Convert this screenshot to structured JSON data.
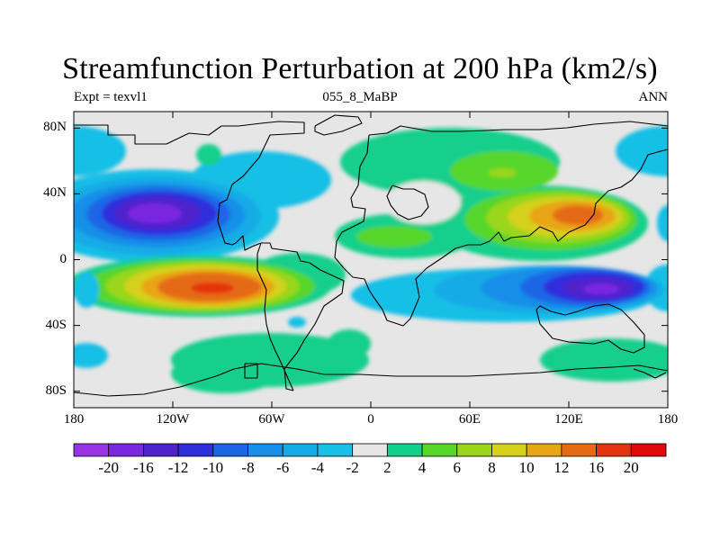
{
  "chart_data": {
    "type": "filled-contour-map",
    "title": "Streamfunction Perturbation at 200 hPa (km2/s)",
    "left_subtitle": "Expt = texvl1",
    "center_subtitle": "055_8_MaBP",
    "right_subtitle": "ANN",
    "x_ticks": [
      "180",
      "120W",
      "60W",
      "0",
      "60E",
      "120E",
      "180"
    ],
    "x_range": [
      -180,
      180
    ],
    "y_ticks": [
      "80N",
      "40N",
      "0",
      "40S",
      "80S"
    ],
    "y_range": [
      -90,
      90
    ],
    "colorbar_levels": [
      "-20",
      "-16",
      "-12",
      "-10",
      "-8",
      "-6",
      "-4",
      "-2",
      "2",
      "4",
      "6",
      "8",
      "10",
      "12",
      "16",
      "20"
    ],
    "colorbar_colors": [
      "#9933e6",
      "#7a28e0",
      "#4f23cc",
      "#2f2fdc",
      "#1a66e6",
      "#178fe8",
      "#14abe6",
      "#18bfe6",
      "#e6e6e6",
      "#12cf8c",
      "#57d62a",
      "#9ad61c",
      "#d6d11a",
      "#e8a516",
      "#e56a12",
      "#e6330f",
      "#e00a0a"
    ],
    "features": [
      {
        "name": "north-pacific-low",
        "lon": -125,
        "lat": 28,
        "peak": -18
      },
      {
        "name": "south-pacific-high",
        "lon": -92,
        "lat": -18,
        "peak": 17
      },
      {
        "name": "asia-high",
        "lon": 130,
        "lat": 26,
        "peak": 14
      },
      {
        "name": "south-indian-low",
        "lon": 132,
        "lat": -18,
        "peak": -16
      }
    ]
  }
}
